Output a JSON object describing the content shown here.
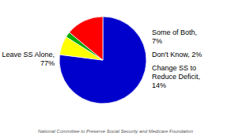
{
  "chart_data": {
    "type": "pie",
    "categories": [
      "Leave SS Alone,\n77%",
      "Some of Both,\n7%",
      "Don't Know, 2%",
      "Change SS to\nReduce Deficit,\n14%"
    ],
    "values": [
      77,
      7,
      2,
      14
    ],
    "colors": [
      "#0000cc",
      "#ffff00",
      "#00aa00",
      "#ff0000"
    ],
    "annotations": [
      "National Committee to Preserve Social Security and Medicare Foundation"
    ]
  }
}
